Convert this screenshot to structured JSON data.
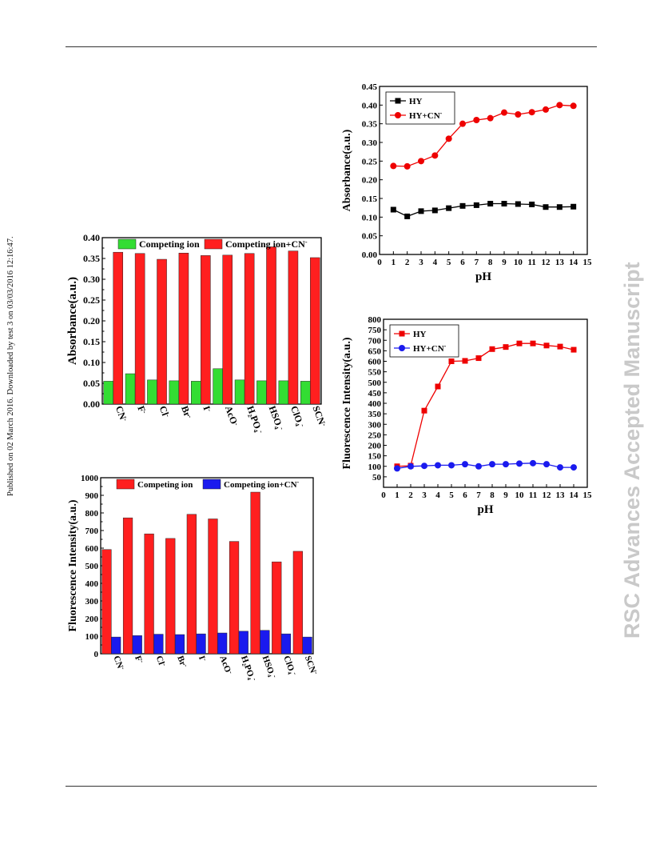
{
  "page": {
    "side_note": "Published on 02 March 2016. Downloaded by test 3 on 03/03/2016 12:16:47.",
    "watermark": "RSC Advances Accepted Manuscript"
  },
  "chart_data": [
    {
      "id": "abs-bar",
      "type": "bar",
      "ylabel": "Absorbance(a.u.)",
      "xlabel": "",
      "categories": [
        "CN-",
        "F-",
        "Cl-",
        "Br-",
        "I-",
        "AcO-",
        "H2PO4-",
        "HSO4-",
        "ClO4-",
        "SCN-"
      ],
      "tick_labels": [
        "CN",
        "F",
        "Cl",
        "Br",
        "I",
        "AcO",
        "H₂PO₄",
        "HSO₄",
        "ClO₄",
        "SCN"
      ],
      "series": [
        {
          "name": "Competing ion",
          "color": "#33dd33",
          "values": [
            0.055,
            0.073,
            0.058,
            0.056,
            0.055,
            0.085,
            0.058,
            0.056,
            0.056,
            0.055
          ]
        },
        {
          "name": "Competing ion+CN-",
          "legend_label": "Competing ion+CN",
          "color": "#ff1f1f",
          "values": [
            0.365,
            0.362,
            0.348,
            0.363,
            0.357,
            0.358,
            0.362,
            0.378,
            0.368,
            0.352
          ]
        }
      ],
      "ylim": [
        0,
        0.4
      ],
      "yticks": [
        "0.00",
        "0.05",
        "0.10",
        "0.15",
        "0.20",
        "0.25",
        "0.30",
        "0.35",
        "0.40"
      ],
      "legend": "top"
    },
    {
      "id": "fl-bar",
      "type": "bar",
      "ylabel": "Fluorescence Intensity(a.u.)",
      "xlabel": "",
      "categories": [
        "CN-",
        "F-",
        "Cl-",
        "Br-",
        "I-",
        "AcO-",
        "H2PO4-",
        "HSO4-",
        "ClO4-",
        "SCN-"
      ],
      "tick_labels": [
        "CN",
        "F",
        "Cl",
        "Br",
        "I",
        "AcO",
        "H₂PO₄",
        "HSO₄",
        "ClO₄",
        "SCN"
      ],
      "series": [
        {
          "name": "Competing ion",
          "color": "#ff1f1f",
          "values": [
            592,
            772,
            681,
            655,
            792,
            766,
            638,
            918,
            522,
            582
          ]
        },
        {
          "name": "Competing ion+CN-",
          "legend_label": "Competing ion+CN",
          "color": "#1a1aee",
          "values": [
            95,
            103,
            111,
            109,
            113,
            118,
            128,
            133,
            113,
            95
          ]
        }
      ],
      "ylim": [
        0,
        1000
      ],
      "yticks": [
        "0",
        "100",
        "200",
        "300",
        "400",
        "500",
        "600",
        "700",
        "800",
        "900",
        "1000"
      ],
      "legend": "top"
    },
    {
      "id": "abs-ph",
      "type": "line",
      "xlabel": "pH",
      "ylabel": "Absorbance(a.u.)",
      "x": [
        1,
        2,
        3,
        4,
        5,
        6,
        7,
        8,
        9,
        10,
        11,
        12,
        13,
        14
      ],
      "series": [
        {
          "name": "HY",
          "color": "#000000",
          "marker": "square",
          "values": [
            0.12,
            0.102,
            0.116,
            0.118,
            0.124,
            0.13,
            0.132,
            0.136,
            0.136,
            0.135,
            0.134,
            0.127,
            0.127,
            0.128
          ]
        },
        {
          "name": "HY+CN-",
          "legend_label": "HY+CN",
          "color": "#ee0000",
          "marker": "circle",
          "values": [
            0.237,
            0.236,
            0.25,
            0.265,
            0.31,
            0.35,
            0.36,
            0.365,
            0.38,
            0.375,
            0.381,
            0.388,
            0.4,
            0.398
          ]
        }
      ],
      "xlim": [
        0,
        15
      ],
      "ylim": [
        0,
        0.45
      ],
      "xticks": [
        "0",
        "1",
        "2",
        "3",
        "4",
        "5",
        "6",
        "7",
        "8",
        "9",
        "10",
        "11",
        "12",
        "13",
        "14",
        "15"
      ],
      "yticks": [
        "0.00",
        "0.05",
        "0.10",
        "0.15",
        "0.20",
        "0.25",
        "0.30",
        "0.35",
        "0.40",
        "0.45"
      ],
      "legend": "top-left"
    },
    {
      "id": "fl-ph",
      "type": "line",
      "xlabel": "pH",
      "ylabel": "Fluorescence Intensity(a.u.)",
      "x": [
        1,
        2,
        3,
        4,
        5,
        6,
        7,
        8,
        9,
        10,
        11,
        12,
        13,
        14
      ],
      "series": [
        {
          "name": "HY",
          "color": "#ee0000",
          "marker": "square",
          "values": [
            100,
            103,
            365,
            480,
            600,
            602,
            615,
            658,
            668,
            685,
            685,
            675,
            670,
            655
          ]
        },
        {
          "name": "HY+CN-",
          "legend_label": "HY+CN",
          "color": "#1a1aee",
          "marker": "circle",
          "values": [
            90,
            100,
            102,
            105,
            105,
            110,
            100,
            110,
            110,
            113,
            115,
            110,
            95,
            95
          ]
        }
      ],
      "xlim": [
        0,
        15
      ],
      "ylim": [
        0,
        800
      ],
      "xticks": [
        "0",
        "1",
        "2",
        "3",
        "4",
        "5",
        "6",
        "7",
        "8",
        "9",
        "10",
        "11",
        "12",
        "13",
        "14",
        "15"
      ],
      "yticks": [
        "50",
        "100",
        "150",
        "200",
        "250",
        "300",
        "350",
        "400",
        "450",
        "500",
        "550",
        "600",
        "650",
        "700",
        "750",
        "800"
      ],
      "legend": "top-left"
    }
  ]
}
